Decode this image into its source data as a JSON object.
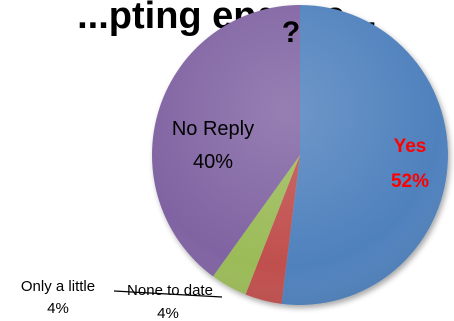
{
  "chart_data": {
    "type": "pie",
    "title": "...pting engage...",
    "title_suffix": "?",
    "slices": [
      {
        "label": "Yes",
        "value": 52,
        "display": "52%",
        "color": "#4f81bd"
      },
      {
        "label": "None to date",
        "value": 4,
        "display": "4%",
        "color": "#c0504d"
      },
      {
        "label": "Only a little",
        "value": 4,
        "display": "4%",
        "color": "#9bbb59"
      },
      {
        "label": "No Reply",
        "value": 40,
        "display": "40%",
        "color": "#8064a2"
      }
    ],
    "label_colors": {
      "yes": "#ff0000",
      "default": "#000000"
    },
    "legend": "none"
  }
}
